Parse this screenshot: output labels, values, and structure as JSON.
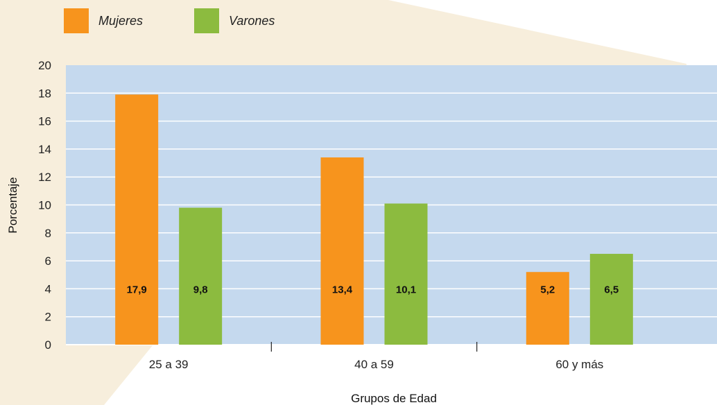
{
  "colors": {
    "background_shape": "#f7eedc",
    "plot_area": "#c5d9ee",
    "gridline": "#ffffff",
    "mujeres": "#f7941d",
    "varones": "#8cbb3f"
  },
  "legend": [
    {
      "name": "Mujeres",
      "color": "#f7941d"
    },
    {
      "name": "Varones",
      "color": "#8cbb3f"
    }
  ],
  "chart_data": {
    "type": "bar",
    "title": "",
    "xlabel": "Grupos de Edad",
    "ylabel": "Porcentaje",
    "categories": [
      "25 a 39",
      "40 a 59",
      "60 y más"
    ],
    "series": [
      {
        "name": "Mujeres",
        "values": [
          17.9,
          13.4,
          5.2
        ],
        "labels": [
          "17,9",
          "13,4",
          "5,2"
        ]
      },
      {
        "name": "Varones",
        "values": [
          9.8,
          10.1,
          6.5
        ],
        "labels": [
          "9,8",
          "10,1",
          "6,5"
        ]
      }
    ],
    "ylim": [
      0,
      20
    ],
    "yticks": [
      0,
      2,
      4,
      6,
      8,
      10,
      12,
      14,
      16,
      18,
      20
    ],
    "grid": true,
    "legend_position": "top-left"
  }
}
